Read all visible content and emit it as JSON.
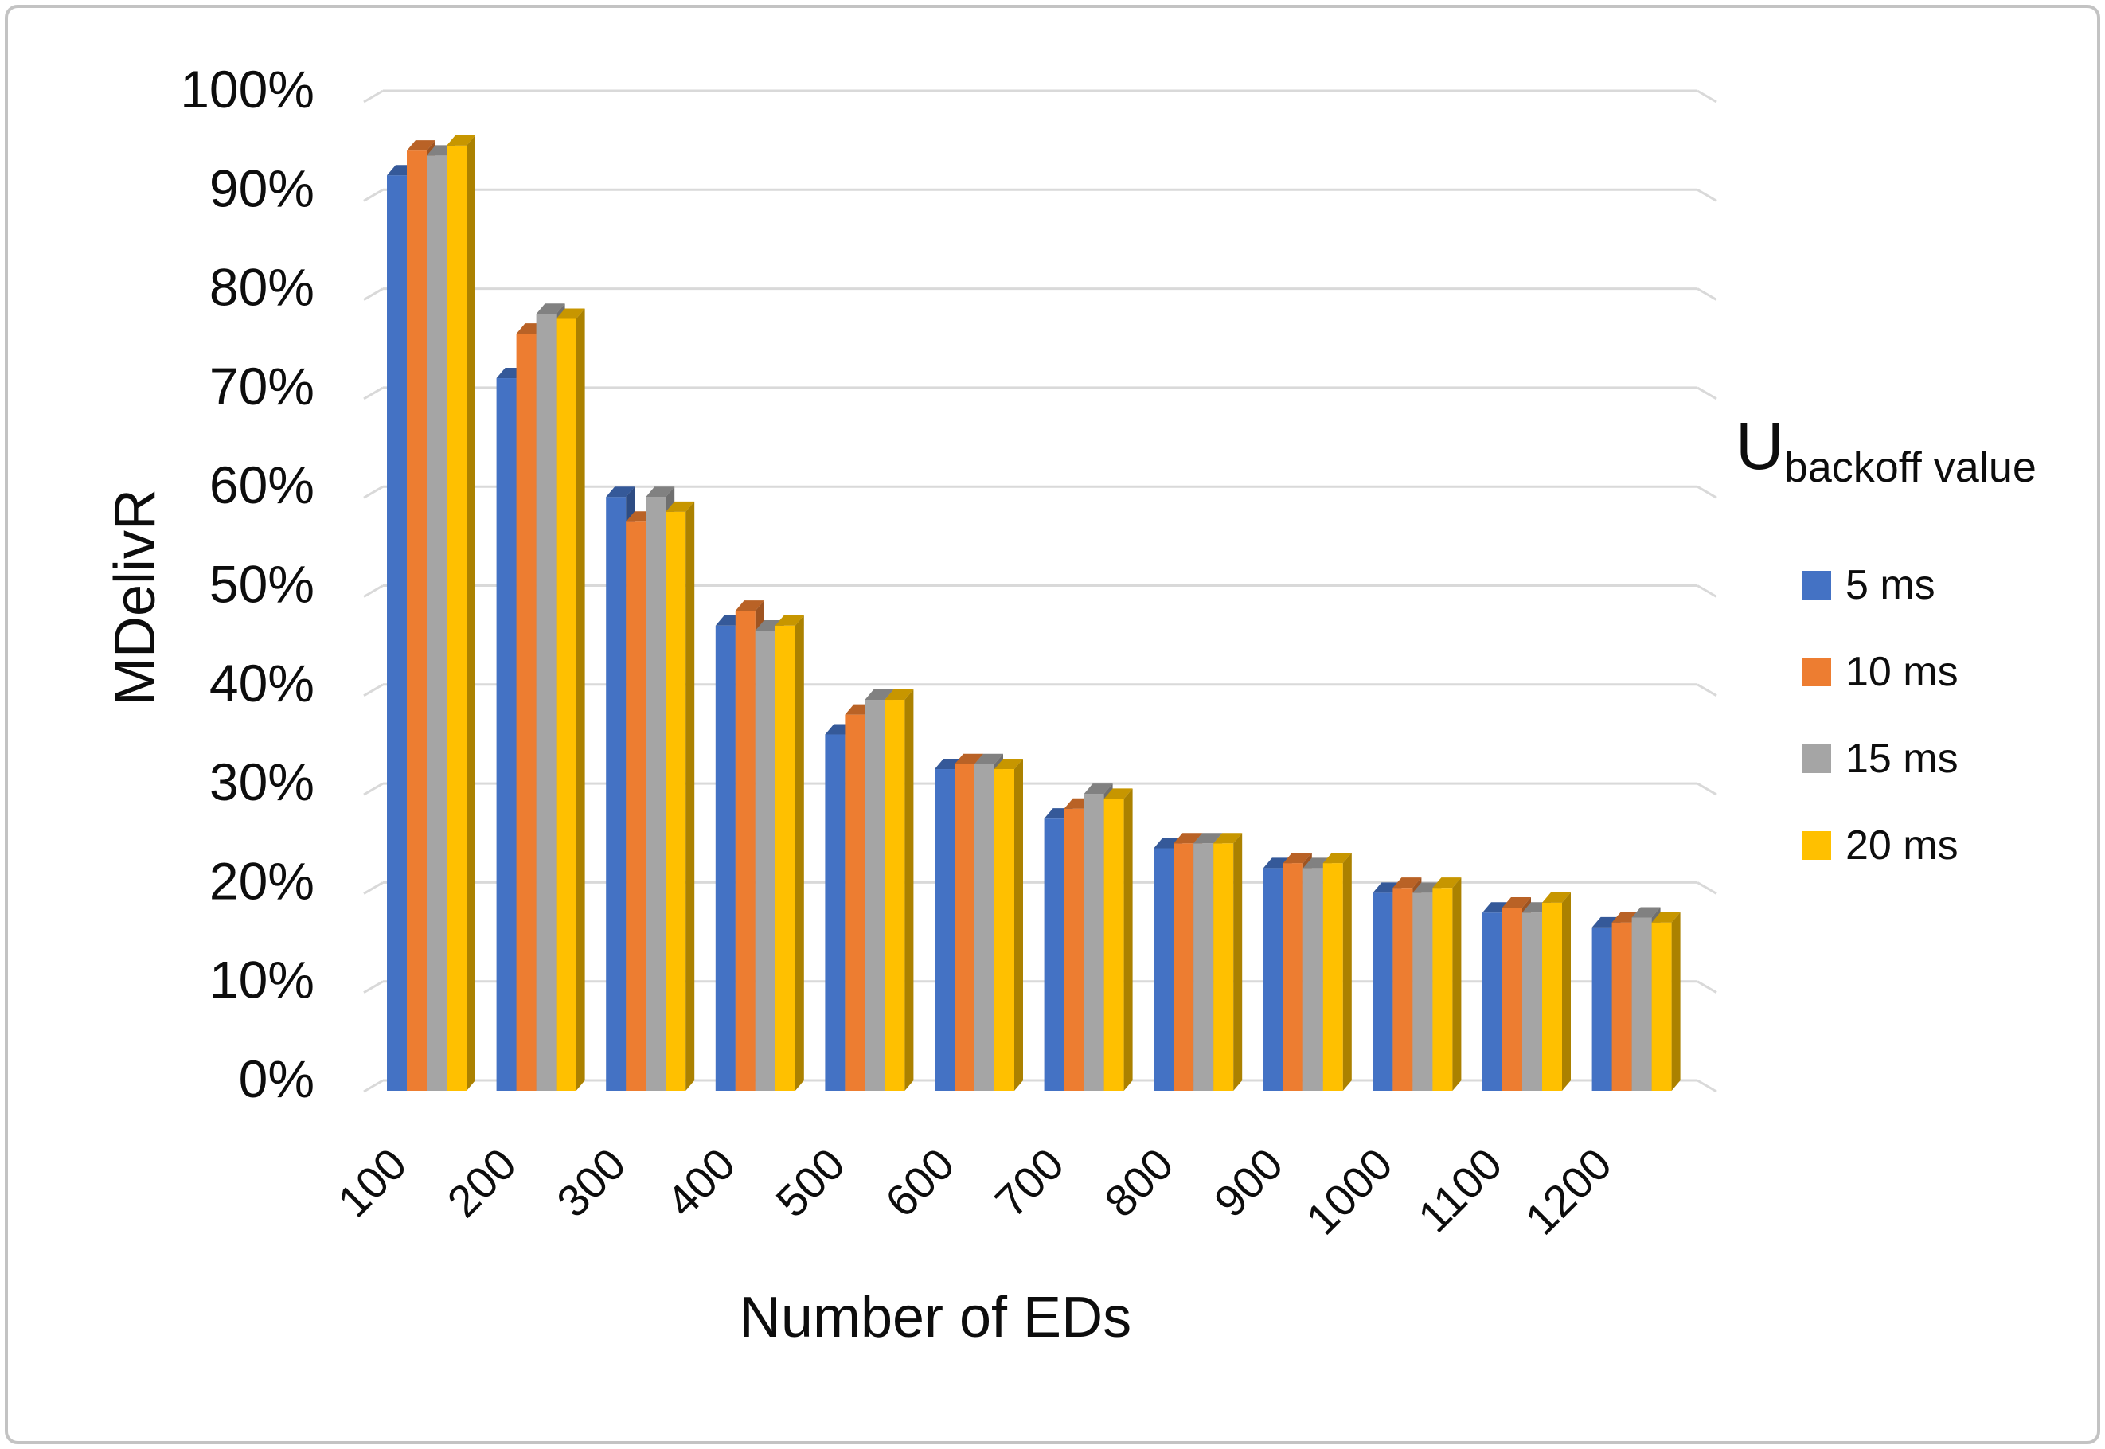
{
  "figure": {
    "background": "#ffffff",
    "border_color": "#c3c3c3",
    "gridline_color": "#d9d9d9",
    "text_color": "#0d0d0d"
  },
  "chart_data": {
    "type": "bar",
    "style": "3d-clustered-column",
    "title": "",
    "xlabel": "Number of EDs",
    "ylabel": "MDelivR",
    "ylim": [
      0,
      100
    ],
    "ytick_step_percent": 10,
    "grid": "horizontal",
    "yticks": [
      "0%",
      "10%",
      "20%",
      "30%",
      "40%",
      "50%",
      "60%",
      "70%",
      "80%",
      "90%",
      "100%"
    ],
    "categories": [
      "100",
      "200",
      "300",
      "400",
      "500",
      "600",
      "700",
      "800",
      "900",
      "1000",
      "1100",
      "1200"
    ],
    "series": [
      {
        "name": "5 ms",
        "color": "#4472C4",
        "values": [
          92.5,
          72.0,
          60.0,
          47.0,
          36.0,
          32.5,
          27.5,
          24.5,
          22.5,
          20.0,
          18.0,
          16.5
        ]
      },
      {
        "name": "10 ms",
        "color": "#ED7D31",
        "values": [
          95.0,
          76.5,
          57.5,
          48.5,
          38.0,
          33.0,
          28.5,
          25.0,
          23.0,
          20.5,
          18.5,
          17.0
        ]
      },
      {
        "name": "15 ms",
        "color": "#A5A5A5",
        "values": [
          94.5,
          78.5,
          60.0,
          46.5,
          39.5,
          33.0,
          30.0,
          25.0,
          22.5,
          20.0,
          18.0,
          17.5
        ]
      },
      {
        "name": "20 ms",
        "color": "#FFC000",
        "values": [
          95.5,
          78.0,
          58.5,
          47.0,
          39.5,
          32.5,
          29.5,
          25.0,
          23.0,
          20.5,
          19.0,
          17.0
        ]
      }
    ],
    "legend": {
      "position": "right",
      "title_main": "U",
      "title_sub": "backoff value"
    }
  }
}
